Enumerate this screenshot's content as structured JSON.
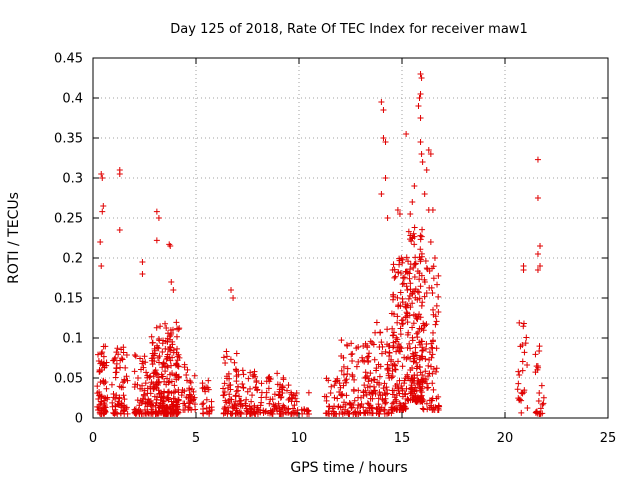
{
  "chart_data": {
    "type": "scatter",
    "title": "Day 125 of 2018, Rate Of TEC Index for receiver maw1",
    "xlabel": "GPS time / hours",
    "ylabel": "ROTI / TECUs",
    "xlim": [
      0,
      25
    ],
    "ylim": [
      0,
      0.45
    ],
    "xticks": [
      0,
      5,
      10,
      15,
      20,
      25
    ],
    "yticks": [
      0,
      0.05,
      0.1,
      0.15,
      0.2,
      0.25,
      0.3,
      0.35,
      0.4,
      0.45
    ],
    "xtick_labels": [
      "0",
      "5",
      "10",
      "15",
      "20",
      "25"
    ],
    "ytick_labels": [
      "0",
      "0.05",
      "0.1",
      "0.15",
      "0.2",
      "0.25",
      "0.3",
      "0.35",
      "0.4",
      "0.45"
    ],
    "grid": true,
    "marker": "+",
    "color": "#e00000",
    "clusters": [
      {
        "x": [
          0.2,
          0.7
        ],
        "y": [
          0.005,
          0.09
        ],
        "n": 70
      },
      {
        "x": [
          0.9,
          1.7
        ],
        "y": [
          0.005,
          0.09
        ],
        "n": 70
      },
      {
        "x": [
          2.0,
          2.8
        ],
        "y": [
          0.005,
          0.08
        ],
        "n": 70
      },
      {
        "x": [
          2.8,
          4.2
        ],
        "y": [
          0.005,
          0.12
        ],
        "n": 260
      },
      {
        "x": [
          4.3,
          5.0
        ],
        "y": [
          0.01,
          0.07
        ],
        "n": 40
      },
      {
        "x": [
          5.3,
          5.8
        ],
        "y": [
          0.005,
          0.05
        ],
        "n": 25
      },
      {
        "x": [
          6.3,
          7.0
        ],
        "y": [
          0.005,
          0.09
        ],
        "n": 60
      },
      {
        "x": [
          7.0,
          8.0
        ],
        "y": [
          0.005,
          0.06
        ],
        "n": 70
      },
      {
        "x": [
          8.0,
          9.5
        ],
        "y": [
          0.005,
          0.06
        ],
        "n": 80
      },
      {
        "x": [
          9.5,
          10.5
        ],
        "y": [
          0.005,
          0.04
        ],
        "n": 35
      },
      {
        "x": [
          11.2,
          12.0
        ],
        "y": [
          0.005,
          0.05
        ],
        "n": 35
      },
      {
        "x": [
          12.0,
          13.2
        ],
        "y": [
          0.005,
          0.1
        ],
        "n": 80
      },
      {
        "x": [
          13.2,
          14.5
        ],
        "y": [
          0.005,
          0.12
        ],
        "n": 120
      },
      {
        "x": [
          14.5,
          15.2
        ],
        "y": [
          0.01,
          0.2
        ],
        "n": 130
      },
      {
        "x": [
          15.2,
          16.0
        ],
        "y": [
          0.02,
          0.24
        ],
        "n": 200
      },
      {
        "x": [
          16.0,
          16.8
        ],
        "y": [
          0.01,
          0.2
        ],
        "n": 90
      },
      {
        "x": [
          20.6,
          21.1
        ],
        "y": [
          0.005,
          0.12
        ],
        "n": 25
      },
      {
        "x": [
          21.4,
          21.9
        ],
        "y": [
          0.005,
          0.1
        ],
        "n": 25
      }
    ],
    "outliers": [
      {
        "x": 0.4,
        "y": 0.305
      },
      {
        "x": 0.45,
        "y": 0.3
      },
      {
        "x": 0.5,
        "y": 0.265
      },
      {
        "x": 0.45,
        "y": 0.258
      },
      {
        "x": 0.35,
        "y": 0.22
      },
      {
        "x": 0.4,
        "y": 0.19
      },
      {
        "x": 1.3,
        "y": 0.31
      },
      {
        "x": 1.3,
        "y": 0.305
      },
      {
        "x": 1.3,
        "y": 0.235
      },
      {
        "x": 2.4,
        "y": 0.195
      },
      {
        "x": 2.4,
        "y": 0.18
      },
      {
        "x": 3.1,
        "y": 0.258
      },
      {
        "x": 3.2,
        "y": 0.25
      },
      {
        "x": 3.1,
        "y": 0.222
      },
      {
        "x": 3.7,
        "y": 0.217
      },
      {
        "x": 3.75,
        "y": 0.215
      },
      {
        "x": 3.8,
        "y": 0.17
      },
      {
        "x": 3.9,
        "y": 0.16
      },
      {
        "x": 6.7,
        "y": 0.16
      },
      {
        "x": 6.8,
        "y": 0.15
      },
      {
        "x": 14.0,
        "y": 0.395
      },
      {
        "x": 14.1,
        "y": 0.385
      },
      {
        "x": 14.1,
        "y": 0.35
      },
      {
        "x": 14.2,
        "y": 0.345
      },
      {
        "x": 14.0,
        "y": 0.28
      },
      {
        "x": 14.3,
        "y": 0.25
      },
      {
        "x": 14.2,
        "y": 0.3
      },
      {
        "x": 14.8,
        "y": 0.26
      },
      {
        "x": 14.9,
        "y": 0.255
      },
      {
        "x": 15.2,
        "y": 0.355
      },
      {
        "x": 15.5,
        "y": 0.27
      },
      {
        "x": 15.4,
        "y": 0.255
      },
      {
        "x": 15.6,
        "y": 0.29
      },
      {
        "x": 15.9,
        "y": 0.43
      },
      {
        "x": 15.95,
        "y": 0.425
      },
      {
        "x": 15.9,
        "y": 0.405
      },
      {
        "x": 15.85,
        "y": 0.4
      },
      {
        "x": 15.8,
        "y": 0.39
      },
      {
        "x": 15.9,
        "y": 0.375
      },
      {
        "x": 15.9,
        "y": 0.345
      },
      {
        "x": 15.95,
        "y": 0.33
      },
      {
        "x": 16.0,
        "y": 0.32
      },
      {
        "x": 16.3,
        "y": 0.335
      },
      {
        "x": 16.2,
        "y": 0.31
      },
      {
        "x": 16.4,
        "y": 0.33
      },
      {
        "x": 16.3,
        "y": 0.26
      },
      {
        "x": 16.5,
        "y": 0.26
      },
      {
        "x": 16.4,
        "y": 0.22
      },
      {
        "x": 16.6,
        "y": 0.2
      },
      {
        "x": 16.1,
        "y": 0.28
      },
      {
        "x": 20.9,
        "y": 0.19
      },
      {
        "x": 20.9,
        "y": 0.185
      },
      {
        "x": 21.6,
        "y": 0.323
      },
      {
        "x": 21.6,
        "y": 0.275
      },
      {
        "x": 21.7,
        "y": 0.215
      },
      {
        "x": 21.6,
        "y": 0.205
      },
      {
        "x": 21.7,
        "y": 0.19
      },
      {
        "x": 21.6,
        "y": 0.185
      }
    ]
  }
}
